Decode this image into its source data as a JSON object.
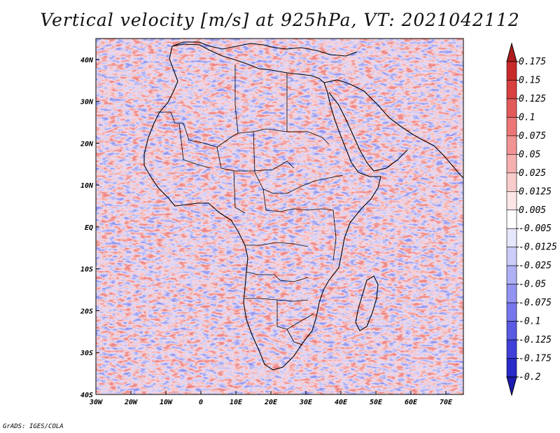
{
  "title": "Vertical velocity [m/s] at 925hPa, VT: 2021042112",
  "footer": "GrADS: IGES/COLA",
  "map": {
    "region": "Africa",
    "lon_range": [
      -30,
      75
    ],
    "lat_range": [
      -40,
      45
    ],
    "lat_ticks": [
      {
        "value": 40,
        "label": "40N"
      },
      {
        "value": 30,
        "label": "30N"
      },
      {
        "value": 20,
        "label": "20N"
      },
      {
        "value": 10,
        "label": "10N"
      },
      {
        "value": 0,
        "label": "EQ"
      },
      {
        "value": -10,
        "label": "10S"
      },
      {
        "value": -20,
        "label": "20S"
      },
      {
        "value": -30,
        "label": "30S"
      },
      {
        "value": -40,
        "label": "40S"
      }
    ],
    "lon_ticks": [
      {
        "value": -30,
        "label": "30W"
      },
      {
        "value": -20,
        "label": "20W"
      },
      {
        "value": -10,
        "label": "10W"
      },
      {
        "value": 0,
        "label": "0"
      },
      {
        "value": 10,
        "label": "10E"
      },
      {
        "value": 20,
        "label": "20E"
      },
      {
        "value": 30,
        "label": "30E"
      },
      {
        "value": 40,
        "label": "40E"
      },
      {
        "value": 50,
        "label": "50E"
      },
      {
        "value": 60,
        "label": "60E"
      },
      {
        "value": 70,
        "label": "70E"
      }
    ]
  },
  "colorbar": {
    "labels": [
      "0.175",
      "0.15",
      "0.125",
      "0.1",
      "0.075",
      "0.05",
      "0.025",
      "0.0125",
      "0.005",
      "-0.005",
      "-0.0125",
      "-0.025",
      "-0.05",
      "-0.075",
      "-0.1",
      "-0.125",
      "-0.175",
      "-0.2"
    ],
    "colors": [
      "#b01c1c",
      "#c82a2a",
      "#d94040",
      "#e35a5a",
      "#ec7676",
      "#f29393",
      "#f6b0b0",
      "#f9cccc",
      "#fde6e6",
      "#ffffff",
      "#e6e6fd",
      "#ccccf9",
      "#b0b0f6",
      "#9393f2",
      "#7676ec",
      "#5a5ae3",
      "#4040d9",
      "#2a2ac8",
      "#1c1cb0"
    ]
  }
}
